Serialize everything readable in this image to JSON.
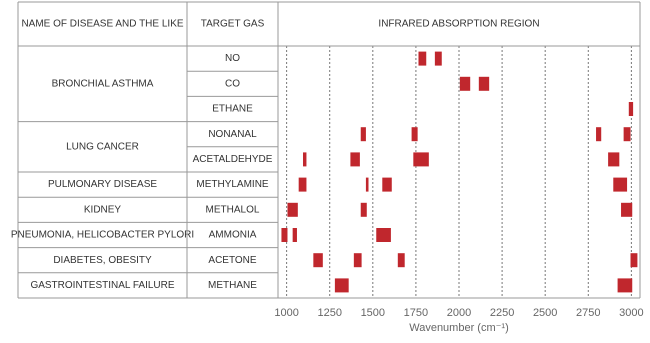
{
  "chart_data": {
    "type": "range_bar",
    "columns": [
      "NAME OF DISEASE AND THE LIKE",
      "TARGET GAS",
      "INFRARED ABSORPTION REGION"
    ],
    "diseases": [
      "BRONCHIAL ASTHMA",
      null,
      null,
      "LUNG CANCER",
      null,
      "PULMONARY DISEASE",
      "KIDNEY",
      "PNEUMONIA, HELICOBACTER PYLORI",
      "DIABETES, OBESITY",
      "GASTROINTESTINAL FAILURE"
    ],
    "categories": [
      "NO",
      "CO",
      "ETHANE",
      "NONANAL",
      "ACETALDEHYDE",
      "METHYLAMINE",
      "METHALOL",
      "AMMONIA",
      "ACETONE",
      "METHANE"
    ],
    "ranges": [
      [
        [
          1765,
          1810
        ],
        [
          1860,
          1900
        ]
      ],
      [
        [
          2005,
          2065
        ],
        [
          2115,
          2175
        ]
      ],
      [
        [
          2985,
          3010
        ]
      ],
      [
        [
          1430,
          1460
        ],
        [
          1725,
          1760
        ],
        [
          2795,
          2825
        ],
        [
          2955,
          2995
        ]
      ],
      [
        [
          1095,
          1115
        ],
        [
          1370,
          1425
        ],
        [
          1735,
          1825
        ],
        [
          2865,
          2930
        ]
      ],
      [
        [
          1070,
          1115
        ],
        [
          1460,
          1475
        ],
        [
          1555,
          1610
        ],
        [
          2895,
          2975
        ]
      ],
      [
        [
          1005,
          1065
        ],
        [
          1430,
          1465
        ],
        [
          2940,
          3005
        ]
      ],
      [
        [
          970,
          1005
        ],
        [
          1035,
          1060
        ],
        [
          1520,
          1605
        ]
      ],
      [
        [
          1155,
          1210
        ],
        [
          1390,
          1435
        ],
        [
          1645,
          1685
        ],
        [
          2995,
          3035
        ]
      ],
      [
        [
          1280,
          1360
        ],
        [
          2920,
          3005
        ]
      ]
    ],
    "color": "#c0272d",
    "xlabel": "Wavenumber (cm⁻¹)",
    "xlim": [
      950,
      3050
    ],
    "xticks": [
      1000,
      1250,
      1500,
      1750,
      2000,
      2250,
      2500,
      2750,
      3000
    ],
    "grid": true
  }
}
